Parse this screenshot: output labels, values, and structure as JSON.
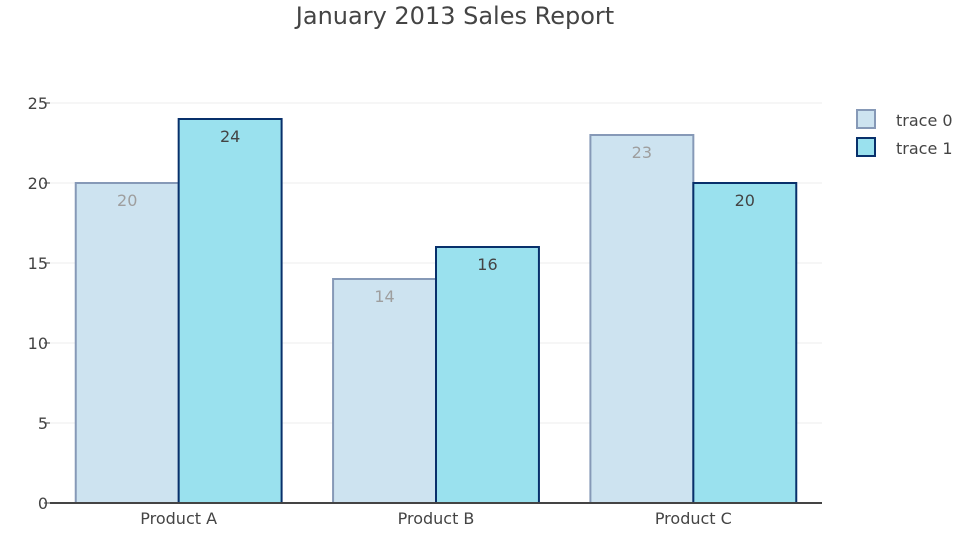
{
  "chart_data": {
    "type": "bar",
    "title": "January 2013 Sales Report",
    "categories": [
      "Product A",
      "Product B",
      "Product C"
    ],
    "series": [
      {
        "name": "trace 0",
        "values": [
          20,
          14,
          23
        ],
        "color": "#cde3f0",
        "line_color": "#8699b7",
        "label_color": "#9e9e9e"
      },
      {
        "name": "trace 1",
        "values": [
          24,
          16,
          20
        ],
        "color": "#9ae1ee",
        "line_color": "#08306b",
        "label_color": "#444444"
      }
    ],
    "ylim": [
      0,
      25
    ],
    "yticks": [
      0,
      5,
      10,
      15,
      20,
      25
    ],
    "grid": true,
    "legend": "top-right"
  }
}
